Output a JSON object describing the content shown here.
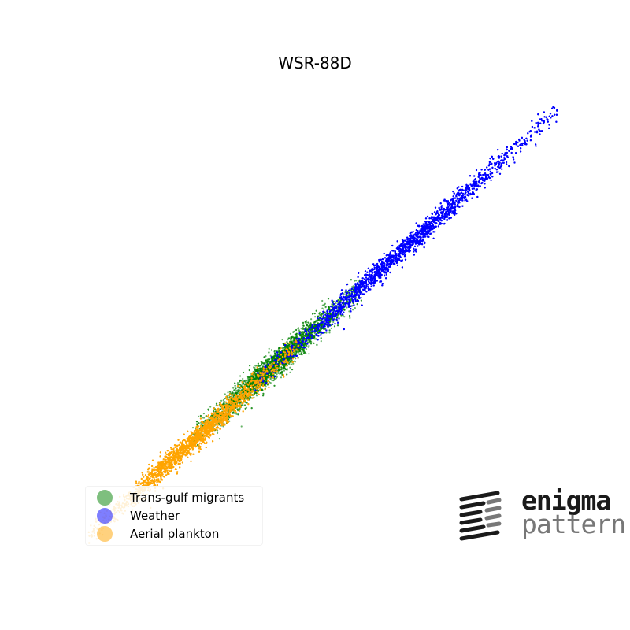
{
  "chart_data": {
    "type": "scatter",
    "title": "WSR-88D",
    "xlabel": "",
    "ylabel": "",
    "axes_visible": false,
    "xlim": [
      0,
      1
    ],
    "ylim": [
      0,
      1
    ],
    "legend_position": "lower-left",
    "series": [
      {
        "name": "Trans-gulf migrants",
        "color": "#008000",
        "point_count": 4000,
        "trend": {
          "x_range": [
            0.23,
            0.58
          ],
          "intercept": 0.03,
          "slope": 0.96
        },
        "spread": 0.015
      },
      {
        "name": "Weather",
        "color": "#0000ff",
        "point_count": 9000,
        "trend": {
          "x_range": [
            0.36,
            0.98
          ],
          "intercept": 0.02,
          "slope": 0.98
        },
        "spread": 0.012
      },
      {
        "name": "Aerial plankton",
        "color": "#ffa500",
        "point_count": 7000,
        "trend": {
          "x_range": [
            0.02,
            0.45
          ],
          "intercept": 0.015,
          "slope": 0.98
        },
        "spread": 0.013
      }
    ]
  },
  "logo": {
    "line1": "enigma",
    "line2": "pattern",
    "colors": {
      "dark": "#1a1a1a",
      "light": "#777777"
    }
  }
}
